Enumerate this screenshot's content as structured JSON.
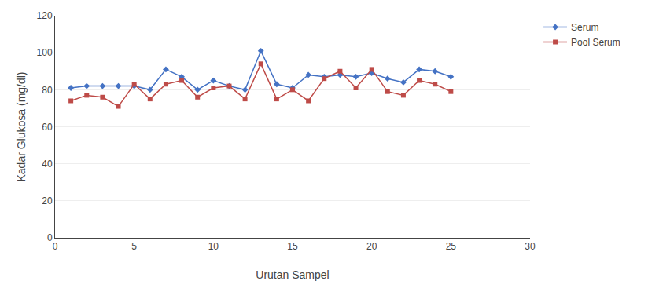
{
  "chart_data": {
    "type": "line",
    "xlabel": "Urutan Sampel",
    "ylabel": "Kadar Glukosa (mg/dl)",
    "x": [
      1,
      2,
      3,
      4,
      5,
      6,
      7,
      8,
      9,
      10,
      11,
      12,
      13,
      14,
      15,
      16,
      17,
      18,
      19,
      20,
      21,
      22,
      23,
      24,
      25
    ],
    "series": [
      {
        "name": "Serum",
        "color": "#4472C4",
        "marker": "diamond",
        "values": [
          81,
          82,
          82,
          82,
          82,
          80,
          91,
          87,
          80,
          85,
          82,
          80,
          101,
          83,
          81,
          88,
          87,
          88,
          87,
          89,
          86,
          84,
          91,
          90,
          87
        ]
      },
      {
        "name": "Pool Serum",
        "color": "#BE4B48",
        "marker": "square",
        "values": [
          74,
          77,
          76,
          71,
          83,
          75,
          83,
          85,
          76,
          81,
          82,
          75,
          94,
          75,
          80,
          74,
          86,
          90,
          81,
          91,
          79,
          77,
          85,
          83,
          79
        ]
      }
    ],
    "xlim": [
      0,
      30
    ],
    "ylim": [
      0,
      120
    ],
    "xticks": [
      0,
      5,
      10,
      15,
      20,
      25,
      30
    ],
    "yticks": [
      0,
      20,
      40,
      60,
      80,
      100,
      120
    ],
    "grid": "y",
    "legend": "right"
  }
}
